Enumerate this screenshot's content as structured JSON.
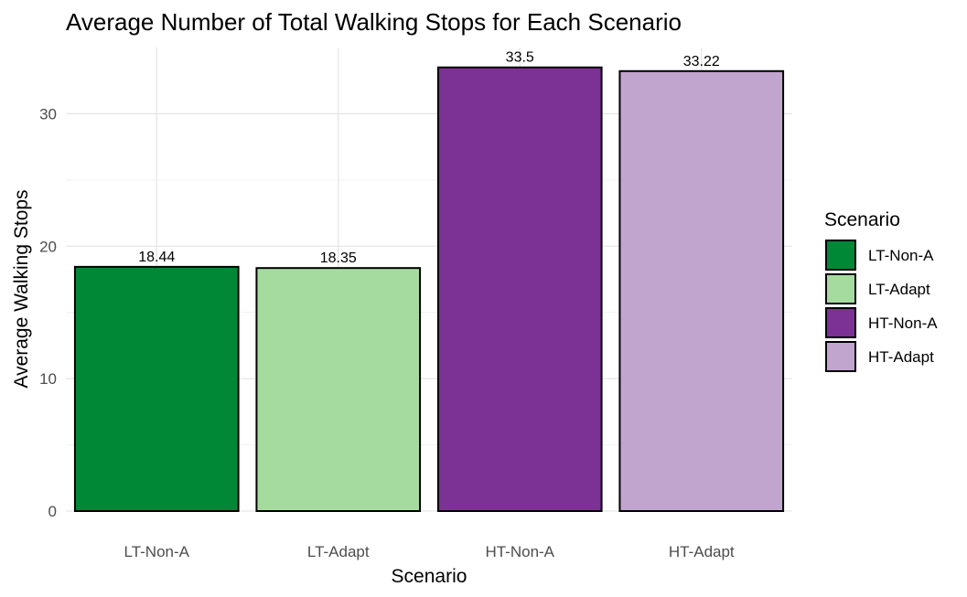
{
  "chart_data": {
    "type": "bar",
    "title": "Average Number of Total Walking Stops for Each Scenario",
    "xlabel": "Scenario",
    "ylabel": "Average Walking Stops",
    "categories": [
      "LT-Non-A",
      "LT-Adapt",
      "HT-Non-A",
      "HT-Adapt"
    ],
    "values": [
      18.44,
      18.35,
      33.5,
      33.22
    ],
    "data_labels": [
      "18.44",
      "18.35",
      "33.5",
      "33.22"
    ],
    "colors": [
      "#008837",
      "#a6dba0",
      "#7b3294",
      "#c2a5cf"
    ],
    "ylim": [
      0,
      35
    ],
    "yticks": [
      0,
      10,
      20,
      30
    ],
    "ytick_labels": [
      "0",
      "10",
      "20",
      "30"
    ],
    "grid": true,
    "legend": {
      "title": "Scenario",
      "position": "right",
      "entries": [
        "LT-Non-A",
        "LT-Adapt",
        "HT-Non-A",
        "HT-Adapt"
      ]
    }
  }
}
